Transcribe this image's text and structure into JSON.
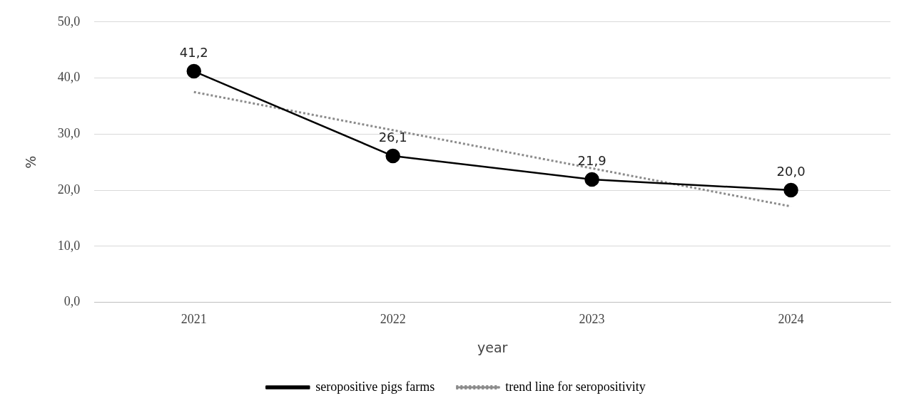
{
  "chart_data": {
    "type": "line",
    "xlabel": "year",
    "ylabel": "%",
    "categories": [
      "2021",
      "2022",
      "2023",
      "2024"
    ],
    "ylim": [
      0,
      50
    ],
    "yticks": [
      {
        "value": 0,
        "label": "0,0"
      },
      {
        "value": 10,
        "label": "10,0"
      },
      {
        "value": 20,
        "label": "20,0"
      },
      {
        "value": 30,
        "label": "30,0"
      },
      {
        "value": 40,
        "label": "40,0"
      },
      {
        "value": 50,
        "label": "50,0"
      }
    ],
    "grid": "y",
    "legend": "bottom",
    "series": [
      {
        "name": "seropositive pigs farms",
        "color": "#000000",
        "values": [
          41.2,
          26.1,
          21.9,
          20.0
        ],
        "value_labels": [
          "41,2",
          "26,1",
          "21,9",
          "20,0"
        ],
        "marker": "circle",
        "line_style": "solid"
      },
      {
        "name": "trend line for seropositivity",
        "color": "#8c8c8c",
        "values": [
          37.5,
          30.7,
          23.9,
          17.1
        ],
        "marker": "none",
        "line_style": "dotted"
      }
    ]
  }
}
